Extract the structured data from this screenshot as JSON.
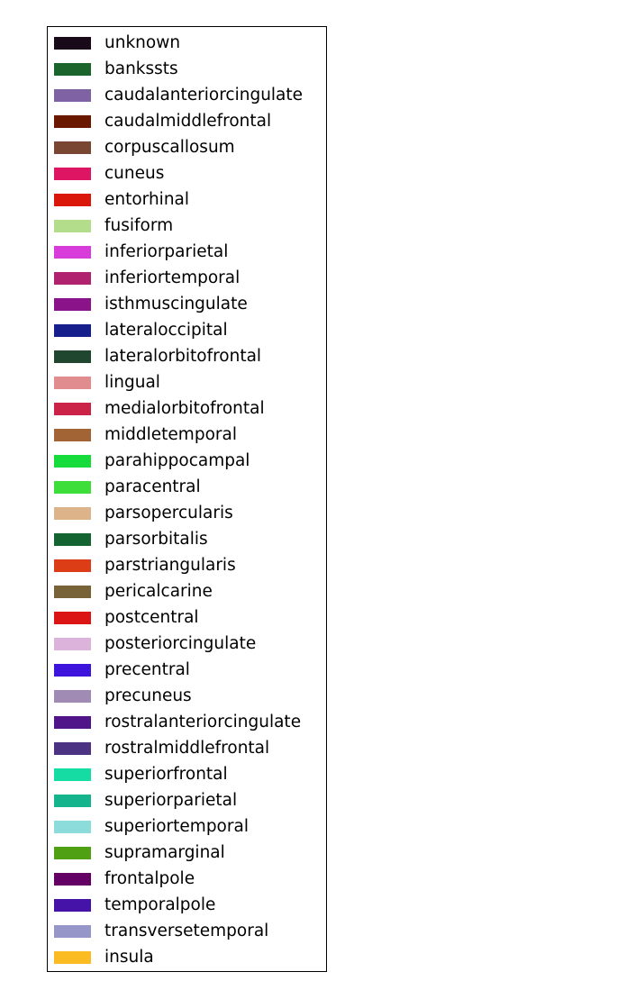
{
  "chart_data": {
    "type": "legend",
    "legend": [
      {
        "label": "unknown",
        "color": "#1a0a19"
      },
      {
        "label": "bankssts",
        "color": "#1b642c"
      },
      {
        "label": "caudalanteriorcingulate",
        "color": "#7f62a3"
      },
      {
        "label": "caudalmiddlefrontal",
        "color": "#6a1900"
      },
      {
        "label": "corpuscallosum",
        "color": "#7a4634"
      },
      {
        "label": "cuneus",
        "color": "#dd1563"
      },
      {
        "label": "entorhinal",
        "color": "#da160b"
      },
      {
        "label": "fusiform",
        "color": "#b3dc8b"
      },
      {
        "label": "inferiorparietal",
        "color": "#d73bda"
      },
      {
        "label": "inferiortemporal",
        "color": "#b0226e"
      },
      {
        "label": "isthmuscingulate",
        "color": "#8a138a"
      },
      {
        "label": "lateraloccipital",
        "color": "#161f8b"
      },
      {
        "label": "lateralorbitofrontal",
        "color": "#204630"
      },
      {
        "label": "lingual",
        "color": "#e18d8f"
      },
      {
        "label": "medialorbitofrontal",
        "color": "#cb2248"
      },
      {
        "label": "middletemporal",
        "color": "#a26434"
      },
      {
        "label": "parahippocampal",
        "color": "#15dc3a"
      },
      {
        "label": "paracentral",
        "color": "#3ddd3a"
      },
      {
        "label": "parsopercularis",
        "color": "#ddb48a"
      },
      {
        "label": "parsorbitalis",
        "color": "#146432"
      },
      {
        "label": "parstriangularis",
        "color": "#dc3c16"
      },
      {
        "label": "pericalcarine",
        "color": "#786238"
      },
      {
        "label": "postcentral",
        "color": "#db1414"
      },
      {
        "label": "posteriorcingulate",
        "color": "#dcb4db"
      },
      {
        "label": "precentral",
        "color": "#3c14dc"
      },
      {
        "label": "precuneus",
        "color": "#a08bb5"
      },
      {
        "label": "rostralanteriorcingulate",
        "color": "#4f1589"
      },
      {
        "label": "rostralmiddlefrontal",
        "color": "#4b3283"
      },
      {
        "label": "superiorfrontal",
        "color": "#15dca3"
      },
      {
        "label": "superiorparietal",
        "color": "#16b48d"
      },
      {
        "label": "superiortemporal",
        "color": "#8cdcdc"
      },
      {
        "label": "supramarginal",
        "color": "#50a014"
      },
      {
        "label": "frontalpole",
        "color": "#640063"
      },
      {
        "label": "temporalpole",
        "color": "#4613a9"
      },
      {
        "label": "transversetemporal",
        "color": "#9796c9"
      },
      {
        "label": "insula",
        "color": "#fbbc23"
      }
    ]
  }
}
